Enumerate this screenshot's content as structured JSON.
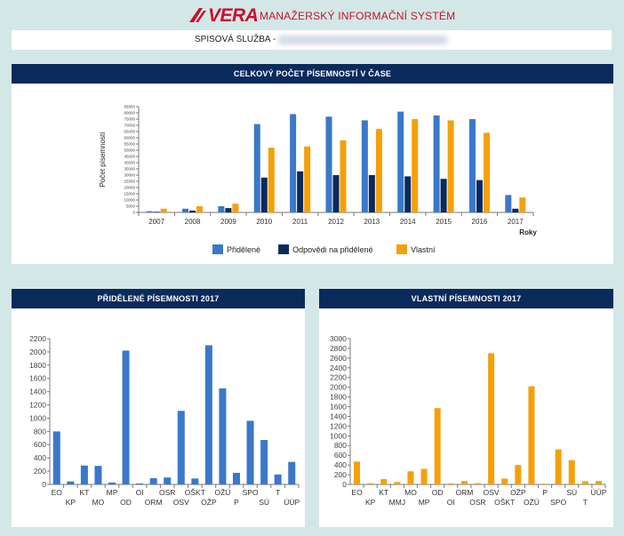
{
  "header": {
    "logo_text": "VERA",
    "app_title": "MANAŽERSKÝ INFORMAČNÍ SYSTÉM",
    "brand_color": "#c8102e"
  },
  "service": {
    "label": "SPISOVÁ SLUŽBA -"
  },
  "colors": {
    "series_blue": "#3a78c9",
    "series_navy": "#0b2a5c",
    "series_orange": "#f5a00a",
    "panel_header": "#0b2a5c",
    "background": "#d3e7e7"
  },
  "panels": {
    "total": {
      "title": "CELKOVÝ POČET PÍSEMNOSTÍ V ČASE"
    },
    "assigned": {
      "title": "PŘIDĚLENÉ PÍSEMNOSTI  2017"
    },
    "own": {
      "title": "VLASTNÍ PÍSEMNOSTI  2017"
    }
  },
  "chart_data": [
    {
      "type": "bar",
      "title": "CELKOVÝ POČET PÍSEMNOSTÍ V ČASE",
      "ylabel": "Počet písemností",
      "xlabel": "Roky",
      "ylim": [
        0,
        85000
      ],
      "ytick_step": 5000,
      "categories": [
        "2007",
        "2008",
        "2009",
        "2010",
        "2011",
        "2012",
        "2013",
        "2014",
        "2015",
        "2016",
        "2017"
      ],
      "series": [
        {
          "name": "Přidělené",
          "color": "#3a78c9",
          "values": [
            1000,
            3000,
            5000,
            71000,
            79000,
            77000,
            74000,
            81000,
            78000,
            75000,
            14000
          ]
        },
        {
          "name": "Odpovědi na přidělené",
          "color": "#0b2a5c",
          "values": [
            500,
            1500,
            3500,
            28000,
            33000,
            30000,
            30000,
            29000,
            27000,
            26000,
            3000
          ]
        },
        {
          "name": "Vlastní",
          "color": "#f5a00a",
          "values": [
            3000,
            5000,
            7000,
            52000,
            53000,
            58000,
            67000,
            75000,
            74000,
            64000,
            12000
          ]
        }
      ],
      "legend": "bottom",
      "grid": false
    },
    {
      "type": "bar",
      "title": "PŘIDĚLENÉ PÍSEMNOSTI  2017",
      "ylim": [
        0,
        2200
      ],
      "ytick_step": 200,
      "categories": [
        "EO",
        "KP",
        "KT",
        "MO",
        "MP",
        "OD",
        "OI",
        "ORM",
        "OSR",
        "OSV",
        "OŠKT",
        "OŽP",
        "OŽÚ",
        "P",
        "SPO",
        "SÚ",
        "T",
        "ÚÚP"
      ],
      "series": [
        {
          "name": "",
          "color": "#3a78c9",
          "values": [
            800,
            45,
            285,
            280,
            30,
            2020,
            15,
            95,
            105,
            1110,
            90,
            2100,
            1450,
            175,
            960,
            670,
            150,
            340
          ]
        }
      ],
      "grid": false
    },
    {
      "type": "bar",
      "title": "VLASTNÍ PÍSEMNOSTI  2017",
      "ylim": [
        0,
        3000
      ],
      "ytick_step": 200,
      "categories": [
        "EO",
        "KP",
        "KT",
        "MMJ",
        "MO",
        "MP",
        "OD",
        "OI",
        "ORM",
        "OSR",
        "OSV",
        "OŠKT",
        "OŽP",
        "OŽÚ",
        "P",
        "SPO",
        "SÚ",
        "T",
        "ÚÚP"
      ],
      "series": [
        {
          "name": "",
          "color": "#f5a00a",
          "values": [
            470,
            25,
            110,
            50,
            270,
            320,
            1570,
            20,
            70,
            25,
            2700,
            120,
            400,
            2020,
            15,
            720,
            500,
            65,
            70
          ]
        }
      ],
      "grid": false
    }
  ]
}
